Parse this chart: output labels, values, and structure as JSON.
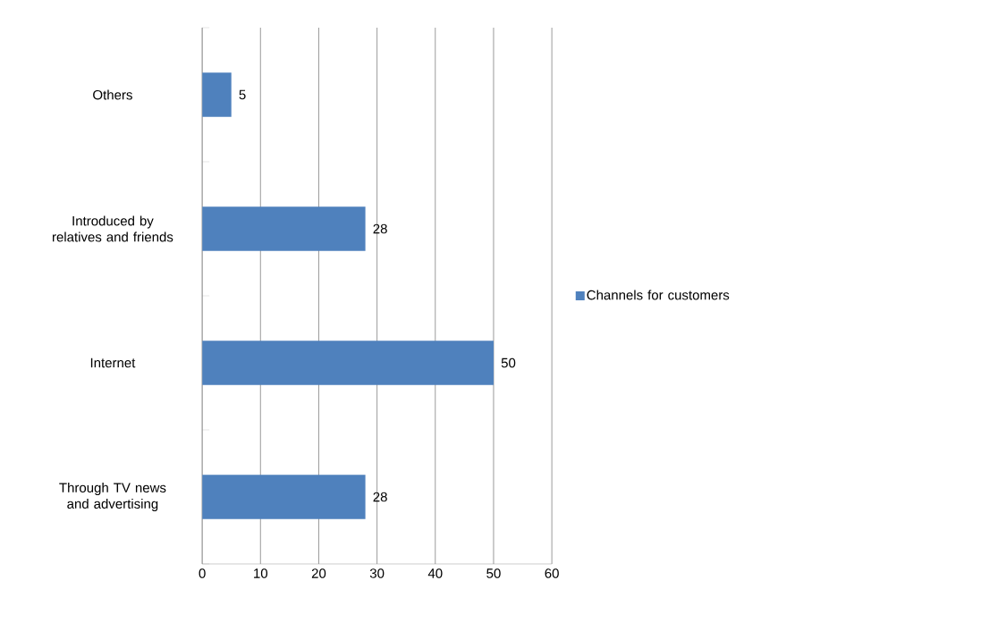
{
  "chart_data": {
    "type": "bar",
    "orientation": "horizontal",
    "categories": [
      "Others",
      "Introduced by relatives and friends",
      "Internet",
      "Through TV news and advertising"
    ],
    "series": [
      {
        "name": "Channels for customers",
        "color": "#4f81bd",
        "values": [
          5,
          28,
          50,
          28
        ]
      }
    ],
    "xlim": [
      0,
      60
    ],
    "xticks": [
      0,
      10,
      20,
      30,
      40,
      50,
      60
    ],
    "grid": "x",
    "legend": "right",
    "data_labels": true
  }
}
